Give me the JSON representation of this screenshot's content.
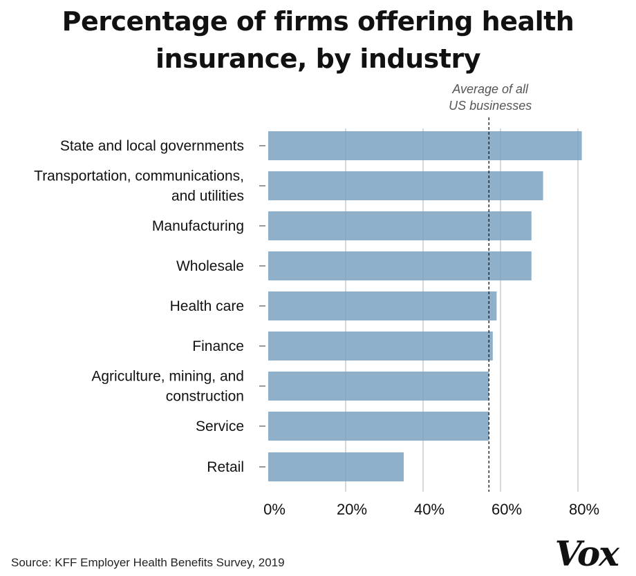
{
  "chart_data": {
    "type": "bar",
    "orientation": "horizontal",
    "title_lines": [
      "Percentage of firms offering health",
      "insurance, by industry"
    ],
    "categories": [
      [
        "State and local governments"
      ],
      [
        "Transportation, communications,",
        "and utilities"
      ],
      [
        "Manufacturing"
      ],
      [
        "Wholesale"
      ],
      [
        "Health care"
      ],
      [
        "Finance"
      ],
      [
        "Agriculture, mining, and",
        "construction"
      ],
      [
        "Service"
      ],
      [
        "Retail"
      ]
    ],
    "values": [
      81,
      71,
      68,
      68,
      59,
      58,
      57,
      57,
      35
    ],
    "xlim": [
      0,
      80
    ],
    "x_ticks": [
      0,
      20,
      40,
      60,
      80
    ],
    "x_tick_labels": [
      "0%",
      "20%",
      "40%",
      "60%",
      "80%"
    ],
    "grid": true,
    "reference_line": {
      "value": 57,
      "style": "dashed",
      "label_lines": [
        "Average of all",
        "US businesses"
      ]
    },
    "colors": {
      "bar": "#8fb0cb",
      "grid": "#cfcfcf",
      "reference": "#111111"
    }
  },
  "source": "Source:  KFF Employer Health Benefits Survey, 2019",
  "logo": "Vox"
}
